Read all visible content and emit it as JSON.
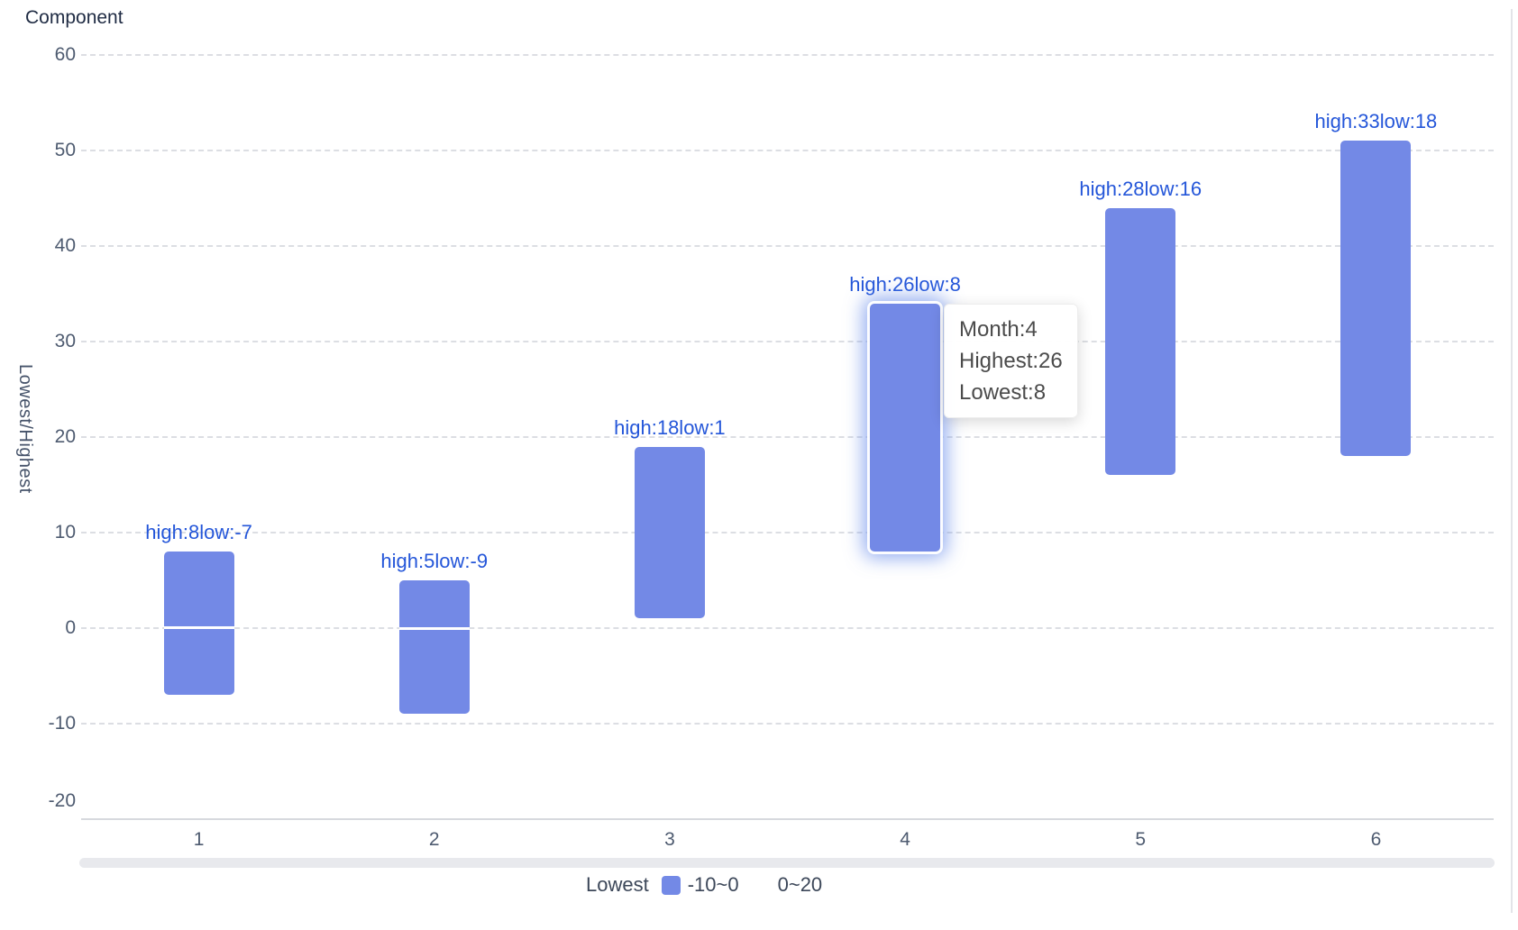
{
  "title": "Component",
  "colors": {
    "bar": "#7389e6",
    "bar_label": "#2456d9",
    "axis_text": "#4e5b70",
    "grid_line": "#dcdee3",
    "axis_line": "#d7d9de",
    "scrollbar_track": "#e8e9ed",
    "divider": "#e3e4e8",
    "tooltip_text": "#4b4b4b",
    "legend_swatch_piece1": "#7389e6",
    "legend_swatch_piece2": "#ffffff"
  },
  "chart_data": {
    "type": "bar",
    "subtype": "stacked-range-bar",
    "title": "Component",
    "xlabel": "",
    "ylabel": "Lowest/Highest",
    "categories": [
      "1",
      "2",
      "3",
      "4",
      "5",
      "6"
    ],
    "series": [
      {
        "name": "Lowest",
        "values": [
          -7,
          -9,
          1,
          8,
          16,
          18
        ]
      },
      {
        "name": "Highest",
        "values": [
          8,
          5,
          18,
          26,
          28,
          33
        ]
      }
    ],
    "stacked": true,
    "visible_bar_ranges": [
      {
        "from": -7,
        "to": 8,
        "split_at_zero": true
      },
      {
        "from": -9,
        "to": 5,
        "split_at_zero": true
      },
      {
        "from": 1,
        "to": 19,
        "split_at_zero": false
      },
      {
        "from": 8,
        "to": 34,
        "split_at_zero": false
      },
      {
        "from": 16,
        "to": 44,
        "split_at_zero": false
      },
      {
        "from": 18,
        "to": 51,
        "split_at_zero": false
      }
    ],
    "bar_labels": [
      "high:8low:-7",
      "high:5low:-9",
      "high:18low:1",
      "high:26low:8",
      "high:28low:16",
      "high:33low:18"
    ],
    "ylim": [
      -20,
      60
    ],
    "y_tick_values": [
      60,
      50,
      40,
      30,
      20,
      10,
      0,
      -10,
      -20
    ],
    "y_tick_labels": [
      "60",
      "50",
      "40",
      "30",
      "20",
      "10",
      "0",
      "-10",
      "-20"
    ],
    "grid": true,
    "grid_style": "dashed",
    "legend_position": "bottom",
    "hovered_category": "4"
  },
  "legend": {
    "series_label": "Lowest",
    "pieces": [
      {
        "label": "-10~0",
        "swatch": "#7389e6"
      },
      {
        "label": "0~20",
        "swatch": "#ffffff"
      }
    ]
  },
  "tooltip": {
    "lines": [
      "Month:4",
      "Highest:26",
      "Lowest:8"
    ]
  }
}
